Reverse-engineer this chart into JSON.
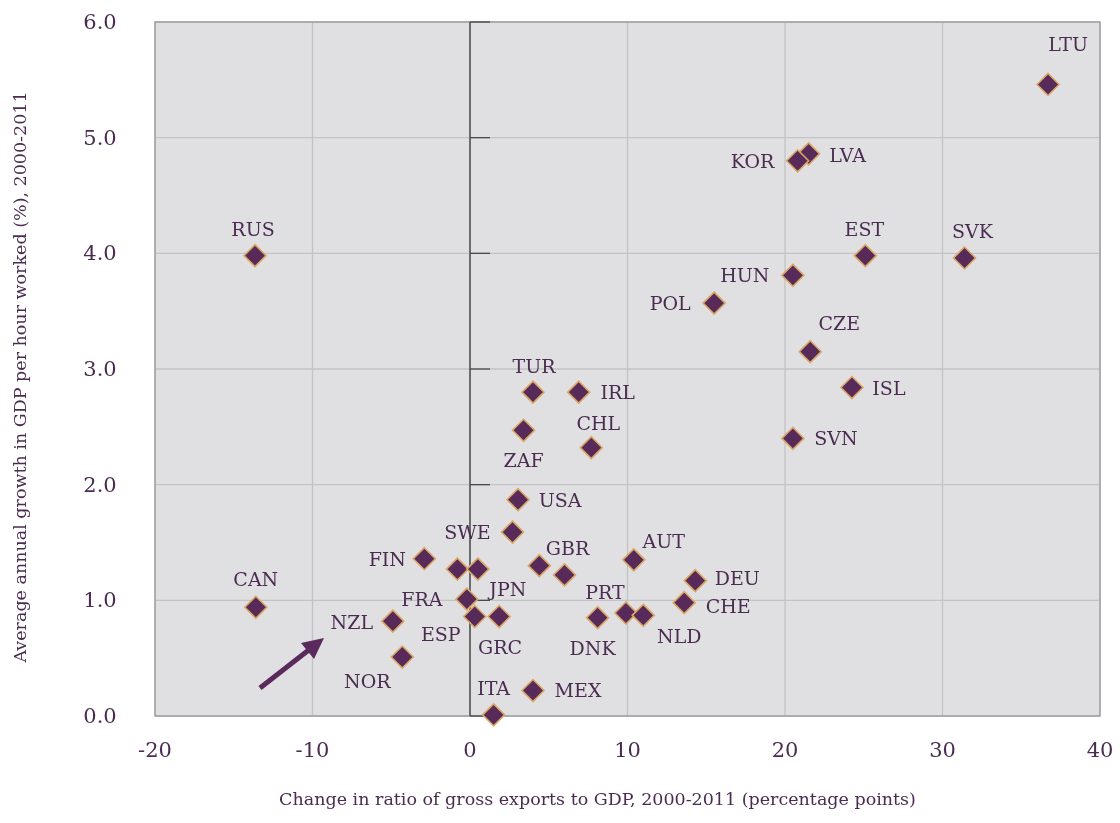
{
  "chart_data": {
    "type": "scatter",
    "xlabel": "Change in ratio of gross exports to GDP, 2000-2011 (percentage points)",
    "ylabel": "Average annual growth in GDP per hour worked (%), 2000-2011",
    "xlim": [
      -20,
      40
    ],
    "xticks": [
      -20,
      -10,
      0,
      10,
      20,
      30,
      40
    ],
    "ylim": [
      0,
      6
    ],
    "yticks": [
      {
        "value": 0,
        "label": "0.0"
      },
      {
        "value": 1,
        "label": "1.0"
      },
      {
        "value": 2,
        "label": "2.0"
      },
      {
        "value": 3,
        "label": "3.0"
      },
      {
        "value": 4,
        "label": "4.0"
      },
      {
        "value": 5,
        "label": "5.0"
      },
      {
        "value": 6,
        "label": "6.0"
      }
    ],
    "grid": true,
    "marker": "diamond",
    "series": [
      {
        "color": "#582a5a",
        "x": [
          36.7,
          21.5,
          20.8,
          -13.65,
          25.1,
          31.4,
          20.5,
          15.5,
          21.6,
          24.25,
          20.5,
          4.0,
          6.9,
          3.4,
          7.7,
          3.05,
          2.7,
          -2.9,
          -0.8,
          0.5,
          4.4,
          6.0,
          10.4,
          14.3,
          13.6,
          -0.2,
          0.3,
          1.85,
          8.1,
          9.9,
          11.0,
          -13.6,
          -4.9,
          -4.3,
          4.0,
          1.5
        ],
        "values": [
          5.46,
          4.86,
          4.8,
          3.98,
          3.98,
          3.96,
          3.81,
          3.57,
          3.15,
          2.84,
          2.4,
          2.8,
          2.8,
          2.47,
          2.32,
          1.87,
          1.59,
          1.36,
          1.27,
          1.27,
          1.3,
          1.22,
          1.35,
          1.17,
          0.98,
          1.01,
          0.86,
          0.86,
          0.85,
          0.89,
          0.87,
          0.94,
          0.82,
          0.51,
          0.22,
          0.01
        ]
      }
    ],
    "annotations": [
      {
        "text": "LTU",
        "x": 36.7,
        "y": 5.46
      },
      {
        "text": "LVA",
        "x": 21.5,
        "y": 4.86
      },
      {
        "text": "KOR",
        "x": 20.8,
        "y": 4.8
      },
      {
        "text": "RUS",
        "x": -13.65,
        "y": 3.98
      },
      {
        "text": "EST",
        "x": 25.1,
        "y": 3.98
      },
      {
        "text": "SVK",
        "x": 31.4,
        "y": 3.96
      },
      {
        "text": "HUN",
        "x": 20.5,
        "y": 3.81
      },
      {
        "text": "POL",
        "x": 15.5,
        "y": 3.57
      },
      {
        "text": "CZE",
        "x": 21.6,
        "y": 3.15
      },
      {
        "text": "ISL",
        "x": 24.25,
        "y": 2.84
      },
      {
        "text": "SVN",
        "x": 20.5,
        "y": 2.4
      },
      {
        "text": "TUR",
        "x": 4.0,
        "y": 2.8
      },
      {
        "text": "IRL",
        "x": 6.9,
        "y": 2.8
      },
      {
        "text": "ZAF",
        "x": 3.4,
        "y": 2.47
      },
      {
        "text": "CHL",
        "x": 7.7,
        "y": 2.32
      },
      {
        "text": "USA",
        "x": 3.05,
        "y": 1.87
      },
      {
        "text": "SWE",
        "x": 2.7,
        "y": 1.59
      },
      {
        "text": "FIN",
        "x": -2.9,
        "y": 1.36
      },
      {
        "text": "GBR",
        "x": 6.0,
        "y": 1.22
      },
      {
        "text": "AUT",
        "x": 10.4,
        "y": 1.35
      },
      {
        "text": "DEU",
        "x": 14.3,
        "y": 1.17
      },
      {
        "text": "CHE",
        "x": 13.6,
        "y": 0.98
      },
      {
        "text": "FRA",
        "x": -0.2,
        "y": 1.01
      },
      {
        "text": "JPN",
        "x": 0.5,
        "y": 1.27
      },
      {
        "text": "ESP",
        "x": 0.3,
        "y": 0.86
      },
      {
        "text": "GRC",
        "x": 1.85,
        "y": 0.86
      },
      {
        "text": "PRT",
        "x": 9.9,
        "y": 0.89
      },
      {
        "text": "DNK",
        "x": 8.1,
        "y": 0.85
      },
      {
        "text": "NLD",
        "x": 11.0,
        "y": 0.87
      },
      {
        "text": "CAN",
        "x": -13.6,
        "y": 0.94
      },
      {
        "text": "NZL",
        "x": -4.9,
        "y": 0.82
      },
      {
        "text": "NOR",
        "x": -4.3,
        "y": 0.51
      },
      {
        "text": "ITA",
        "x": 1.5,
        "y": 0.01
      },
      {
        "text": "MEX",
        "x": 4.0,
        "y": 0.22
      }
    ]
  }
}
